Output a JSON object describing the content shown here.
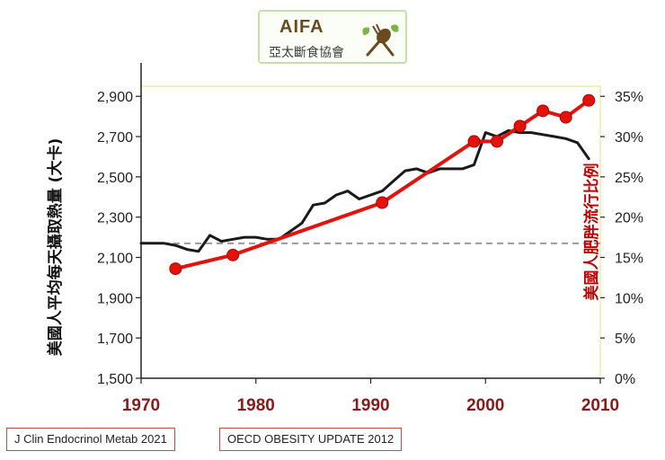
{
  "logo": {
    "title": "AIFA",
    "subtitle": "亞太斷食協會"
  },
  "sources": [
    "J Clin Endocrinol Metab 2021",
    "OECD OBESITY UPDATE 2012"
  ],
  "colors": {
    "calories": "#1a1a1a",
    "obesity": "#e3120b",
    "x_ticks": "#8b1a1a",
    "right_axis": "#c00000",
    "reference": "#9a9a9a"
  },
  "chart_data": {
    "type": "line",
    "xlabel": "",
    "ylabel_left": "美國人平均每天攝取熱量 (大卡)",
    "ylabel_right": "美國人肥胖流行比例",
    "xlim": [
      1970,
      2010
    ],
    "ylim_left": [
      1500,
      2950
    ],
    "ylim_right": [
      0,
      36.25
    ],
    "x_ticks": [
      "1970",
      "1980",
      "1990",
      "2000",
      "2010"
    ],
    "y_ticks_left": [
      "1,500",
      "1,700",
      "1,900",
      "2,100",
      "2,300",
      "2,500",
      "2,700",
      "2,900"
    ],
    "y_ticks_right": [
      "0%",
      "5%",
      "10%",
      "15%",
      "20%",
      "25%",
      "30%",
      "35%"
    ],
    "reference_line": {
      "axis": "left",
      "value": 2170,
      "style": "dashed"
    },
    "series": [
      {
        "name": "每天攝取熱量",
        "axis": "left",
        "x": [
          1970,
          1971,
          1972,
          1973,
          1974,
          1975,
          1976,
          1977,
          1978,
          1979,
          1980,
          1981,
          1982,
          1983,
          1984,
          1985,
          1986,
          1987,
          1988,
          1989,
          1990,
          1991,
          1992,
          1993,
          1994,
          1995,
          1996,
          1997,
          1998,
          1999,
          2000,
          2001,
          2002,
          2003,
          2004,
          2005,
          2006,
          2007,
          2008,
          2009
        ],
        "values": [
          2170,
          2170,
          2170,
          2160,
          2140,
          2130,
          2210,
          2180,
          2190,
          2200,
          2200,
          2190,
          2190,
          2230,
          2270,
          2360,
          2370,
          2410,
          2430,
          2390,
          2410,
          2430,
          2480,
          2530,
          2540,
          2520,
          2540,
          2540,
          2540,
          2560,
          2720,
          2700,
          2730,
          2720,
          2720,
          2710,
          2700,
          2690,
          2670,
          2590
        ]
      },
      {
        "name": "肥胖流行比例",
        "axis": "right",
        "markers": true,
        "x": [
          1973,
          1978,
          1991,
          1999,
          2001,
          2003,
          2005,
          2007,
          2009
        ],
        "values": [
          13.6,
          15.3,
          21.8,
          29.4,
          29.4,
          31.3,
          33.2,
          32.4,
          34.5
        ]
      }
    ]
  }
}
